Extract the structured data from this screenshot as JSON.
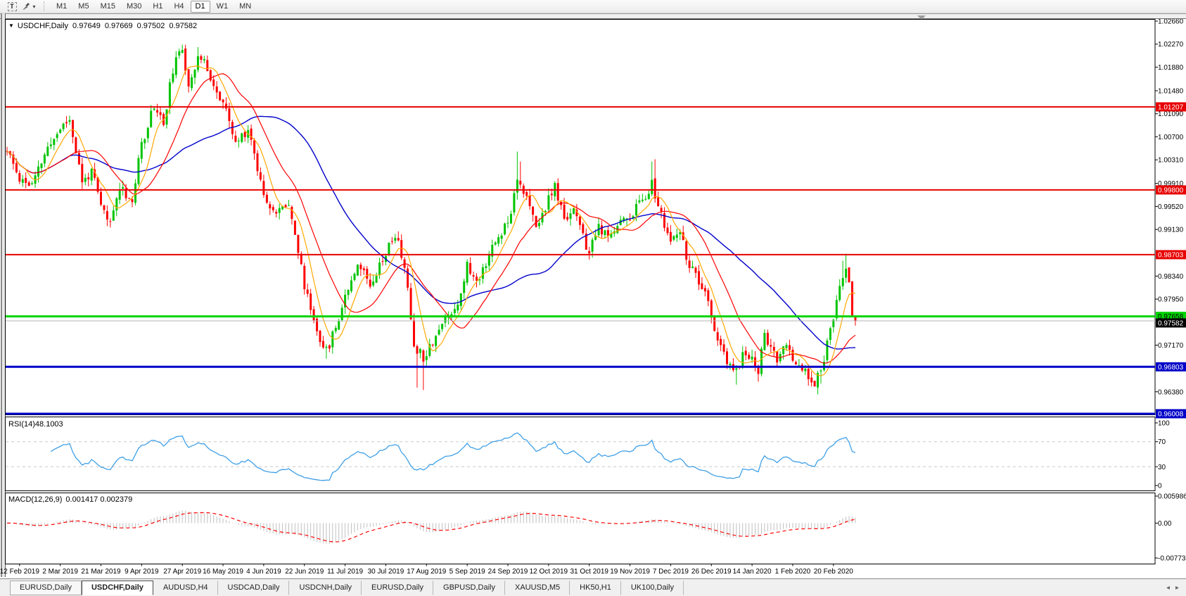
{
  "toolbar": {
    "text_tool_glyph": "T",
    "dropdown_caret": "▾",
    "timeframes": [
      "M1",
      "M5",
      "M15",
      "M30",
      "H1",
      "H4",
      "D1",
      "W1",
      "MN"
    ],
    "active_timeframe": "D1"
  },
  "main_chart": {
    "collapse_glyph": "▼",
    "symbol_title": "USDCHF,Daily",
    "quote": {
      "open": "0.97649",
      "high": "0.97669",
      "low": "0.97502",
      "close": "0.97582"
    },
    "y_axis_ticks": [
      "1.02660",
      "1.02270",
      "1.01880",
      "1.01480",
      "1.01090",
      "1.00700",
      "1.00310",
      "0.99910",
      "0.99520",
      "0.99130",
      "0.98340",
      "0.97950",
      "0.97170",
      "0.96380"
    ],
    "price_lines": [
      {
        "label": "1.01207",
        "value": 1.01207,
        "color": "#e80000",
        "text_color": "#ffffff",
        "width": 2
      },
      {
        "label": "0.99800",
        "value": 0.998,
        "color": "#e80000",
        "text_color": "#ffffff",
        "width": 2
      },
      {
        "label": "0.98703",
        "value": 0.98703,
        "color": "#e80000",
        "text_color": "#ffffff",
        "width": 2
      },
      {
        "label": "0.97658",
        "value": 0.97658,
        "color": "#00d400",
        "text_color": "#000000",
        "width": 3
      },
      {
        "label": "0.96803",
        "value": 0.96803,
        "color": "#0000c8",
        "text_color": "#ffffff",
        "width": 3
      },
      {
        "label": "0.96008",
        "value": 0.96008,
        "color": "#0000c8",
        "text_color": "#ffffff",
        "width": 3
      }
    ],
    "current_price": {
      "label": "0.97582",
      "value": 0.97582,
      "badge_color": "#000000",
      "text_color": "#ffffff",
      "line_color": "#b4b4b4"
    },
    "colors": {
      "up": "#00c400",
      "down": "#ff0000",
      "ma_fast": "#ffa800",
      "ma_mid": "#ff0000",
      "ma_slow": "#0000cc"
    },
    "series": {
      "type": "candlestick",
      "bar_count": 272,
      "seed": 11,
      "noise": 0.0009,
      "wick": 0.0012,
      "waypoints": [
        [
          0,
          1.0045
        ],
        [
          4,
          1.0
        ],
        [
          8,
          0.9987
        ],
        [
          12,
          1.004
        ],
        [
          17,
          1.0085
        ],
        [
          20,
          1.01
        ],
        [
          24,
          0.9992
        ],
        [
          27,
          1.0012
        ],
        [
          30,
          0.9952
        ],
        [
          33,
          0.9922
        ],
        [
          36,
          0.9988
        ],
        [
          40,
          0.996
        ],
        [
          43,
          1.0058
        ],
        [
          47,
          1.0125
        ],
        [
          50,
          1.0092
        ],
        [
          53,
          1.0185
        ],
        [
          56,
          1.0218
        ],
        [
          58,
          1.016
        ],
        [
          61,
          1.0205
        ],
        [
          64,
          1.0188
        ],
        [
          67,
          1.0142
        ],
        [
          69,
          1.0128
        ],
        [
          73,
          1.0058
        ],
        [
          77,
          1.0085
        ],
        [
          82,
          0.9975
        ],
        [
          86,
          0.9938
        ],
        [
          90,
          0.9962
        ],
        [
          95,
          0.9818
        ],
        [
          99,
          0.9742
        ],
        [
          102,
          0.9706
        ],
        [
          105,
          0.9748
        ],
        [
          108,
          0.9802
        ],
        [
          112,
          0.9858
        ],
        [
          116,
          0.9822
        ],
        [
          121,
          0.9875
        ],
        [
          124,
          0.9905
        ],
        [
          127,
          0.9852
        ],
        [
          130,
          0.9718
        ],
        [
          133,
          0.9698
        ],
        [
          136,
          0.9725
        ],
        [
          140,
          0.9762
        ],
        [
          144,
          0.9788
        ],
        [
          147,
          0.9852
        ],
        [
          150,
          0.9822
        ],
        [
          154,
          0.9872
        ],
        [
          158,
          0.9908
        ],
        [
          161,
          0.9945
        ],
        [
          163,
          1.0005
        ],
        [
          166,
          0.9965
        ],
        [
          169,
          0.9915
        ],
        [
          172,
          0.9952
        ],
        [
          175,
          0.9985
        ],
        [
          178,
          0.9928
        ],
        [
          181,
          0.9952
        ],
        [
          184,
          0.9898
        ],
        [
          186,
          0.9872
        ],
        [
          189,
          0.9918
        ],
        [
          192,
          0.9895
        ],
        [
          195,
          0.9925
        ],
        [
          199,
          0.9935
        ],
        [
          203,
          0.9965
        ],
        [
          206,
          0.999
        ],
        [
          209,
          0.9935
        ],
        [
          212,
          0.9892
        ],
        [
          215,
          0.9905
        ],
        [
          218,
          0.9852
        ],
        [
          221,
          0.9822
        ],
        [
          224,
          0.9788
        ],
        [
          227,
          0.9725
        ],
        [
          230,
          0.9685
        ],
        [
          233,
          0.9672
        ],
        [
          235,
          0.97
        ],
        [
          238,
          0.9698
        ],
        [
          240,
          0.9672
        ],
        [
          242,
          0.9738
        ],
        [
          244,
          0.9712
        ],
        [
          246,
          0.9688
        ],
        [
          248,
          0.9715
        ],
        [
          251,
          0.9698
        ],
        [
          254,
          0.9678
        ],
        [
          256,
          0.9662
        ],
        [
          258,
          0.9655
        ],
        [
          260,
          0.9672
        ],
        [
          262,
          0.9718
        ],
        [
          264,
          0.9762
        ],
        [
          266,
          0.9812
        ],
        [
          268,
          0.9852
        ],
        [
          269,
          0.9832
        ],
        [
          270,
          0.9768
        ],
        [
          271,
          0.97582
        ]
      ],
      "high_spikes": [
        [
          20,
          1.0106
        ],
        [
          56,
          1.0226
        ],
        [
          61,
          1.0222
        ],
        [
          163,
          1.0045
        ],
        [
          164,
          1.0028
        ],
        [
          206,
          1.0028
        ],
        [
          207,
          1.0032
        ],
        [
          267,
          0.986
        ],
        [
          268,
          0.9872
        ]
      ],
      "low_spikes": [
        [
          102,
          0.9694
        ],
        [
          131,
          0.9645
        ],
        [
          133,
          0.9641
        ],
        [
          233,
          0.965
        ],
        [
          240,
          0.9655
        ],
        [
          258,
          0.9648
        ],
        [
          260,
          0.9652
        ]
      ]
    }
  },
  "rsi": {
    "name": "RSI(14)",
    "value": "48.1003",
    "axis_ticks": [
      "100",
      "70",
      "30",
      "0"
    ],
    "dashed_levels": [
      70,
      30
    ],
    "line_color": "#3fa0e8",
    "level_color": "#c8c8c8"
  },
  "macd": {
    "name": "MACD(12,26,9)",
    "values": "0.001417 0.002379",
    "axis_ticks": [
      "0.005986",
      "0.00",
      "-0.007737"
    ],
    "axis_max": 0.005986,
    "axis_min": -0.007737,
    "hist_color": "#c0c0c0",
    "signal_color": "#ff0000"
  },
  "date_axis": {
    "labels": [
      "12 Feb 2019",
      "2 Mar 2019",
      "21 Mar 2019",
      "9 Apr 2019",
      "27 Apr 2019",
      "16 May 2019",
      "4 Jun 2019",
      "22 Jun 2019",
      "11 Jul 2019",
      "30 Jul 2019",
      "17 Aug 2019",
      "5 Sep 2019",
      "24 Sep 2019",
      "12 Oct 2019",
      "31 Oct 2019",
      "19 Nov 2019",
      "7 Dec 2019",
      "26 Dec 2019",
      "14 Jan 2020",
      "1 Feb 2020",
      "20 Feb 2020"
    ]
  },
  "tabs": {
    "items": [
      "EURUSD,Daily",
      "USDCHF,Daily",
      "AUDUSD,H4",
      "USDCAD,Daily",
      "USDCNH,Daily",
      "EURUSD,Daily",
      "GBPUSD,Daily",
      "XAUUSD,M5",
      "HK50,H1",
      "UK100,Daily"
    ],
    "active_index": 1,
    "scroll_left": "◂",
    "scroll_right": "▸"
  }
}
